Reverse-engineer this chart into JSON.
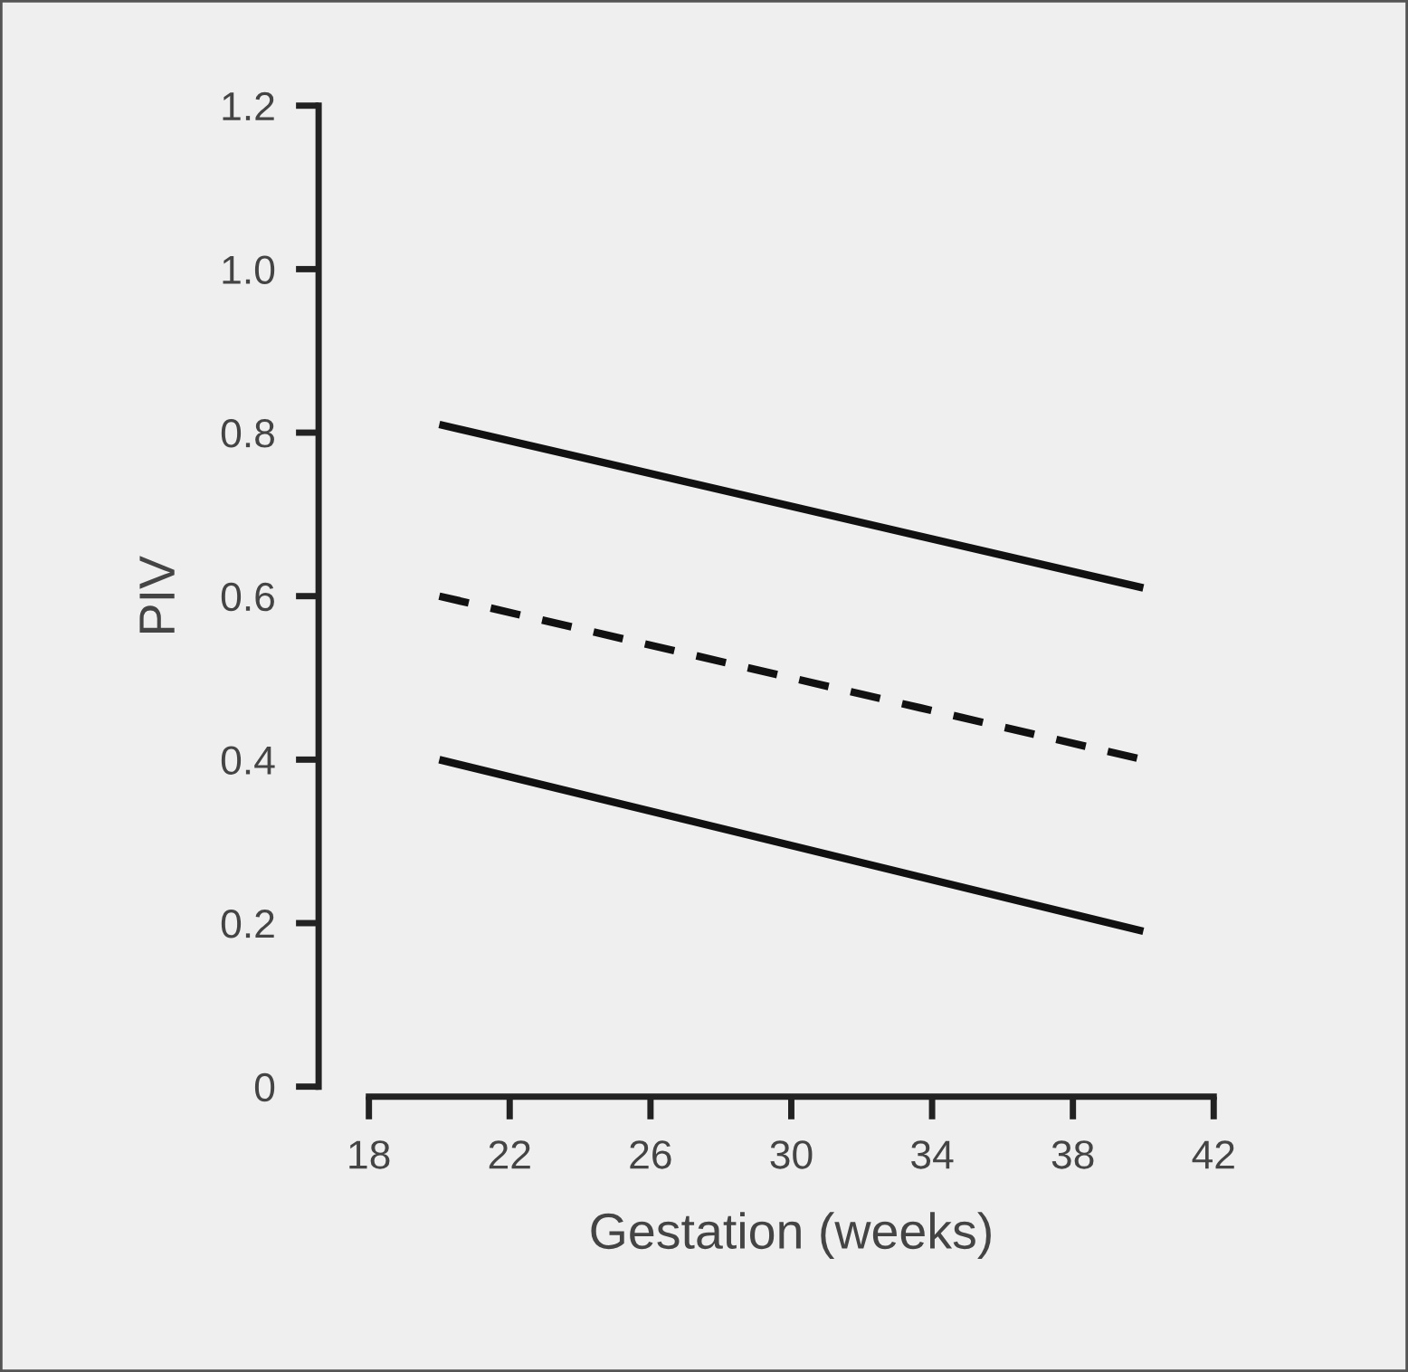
{
  "chart_data": {
    "type": "line",
    "xlabel": "Gestation (weeks)",
    "ylabel": "PIV",
    "x": [
      20,
      40
    ],
    "series": [
      {
        "color": "#111111",
        "values": [
          0.81,
          0.61
        ],
        "line_style": "solid"
      },
      {
        "color": "#111111",
        "values": [
          0.6,
          0.4
        ],
        "line_style": "dashed"
      },
      {
        "color": "#111111",
        "values": [
          0.4,
          0.19
        ],
        "line_style": "solid"
      }
    ],
    "xlim": [
      18,
      42
    ],
    "xticks": [
      18,
      22,
      26,
      30,
      34,
      38,
      42
    ],
    "ylim": [
      0,
      1.2
    ],
    "yticks": [
      0,
      0.2,
      0.4,
      0.6,
      0.8,
      {
        "value": 1,
        "label": "1.0"
      },
      1.2
    ],
    "grid": false,
    "marker": "none"
  }
}
